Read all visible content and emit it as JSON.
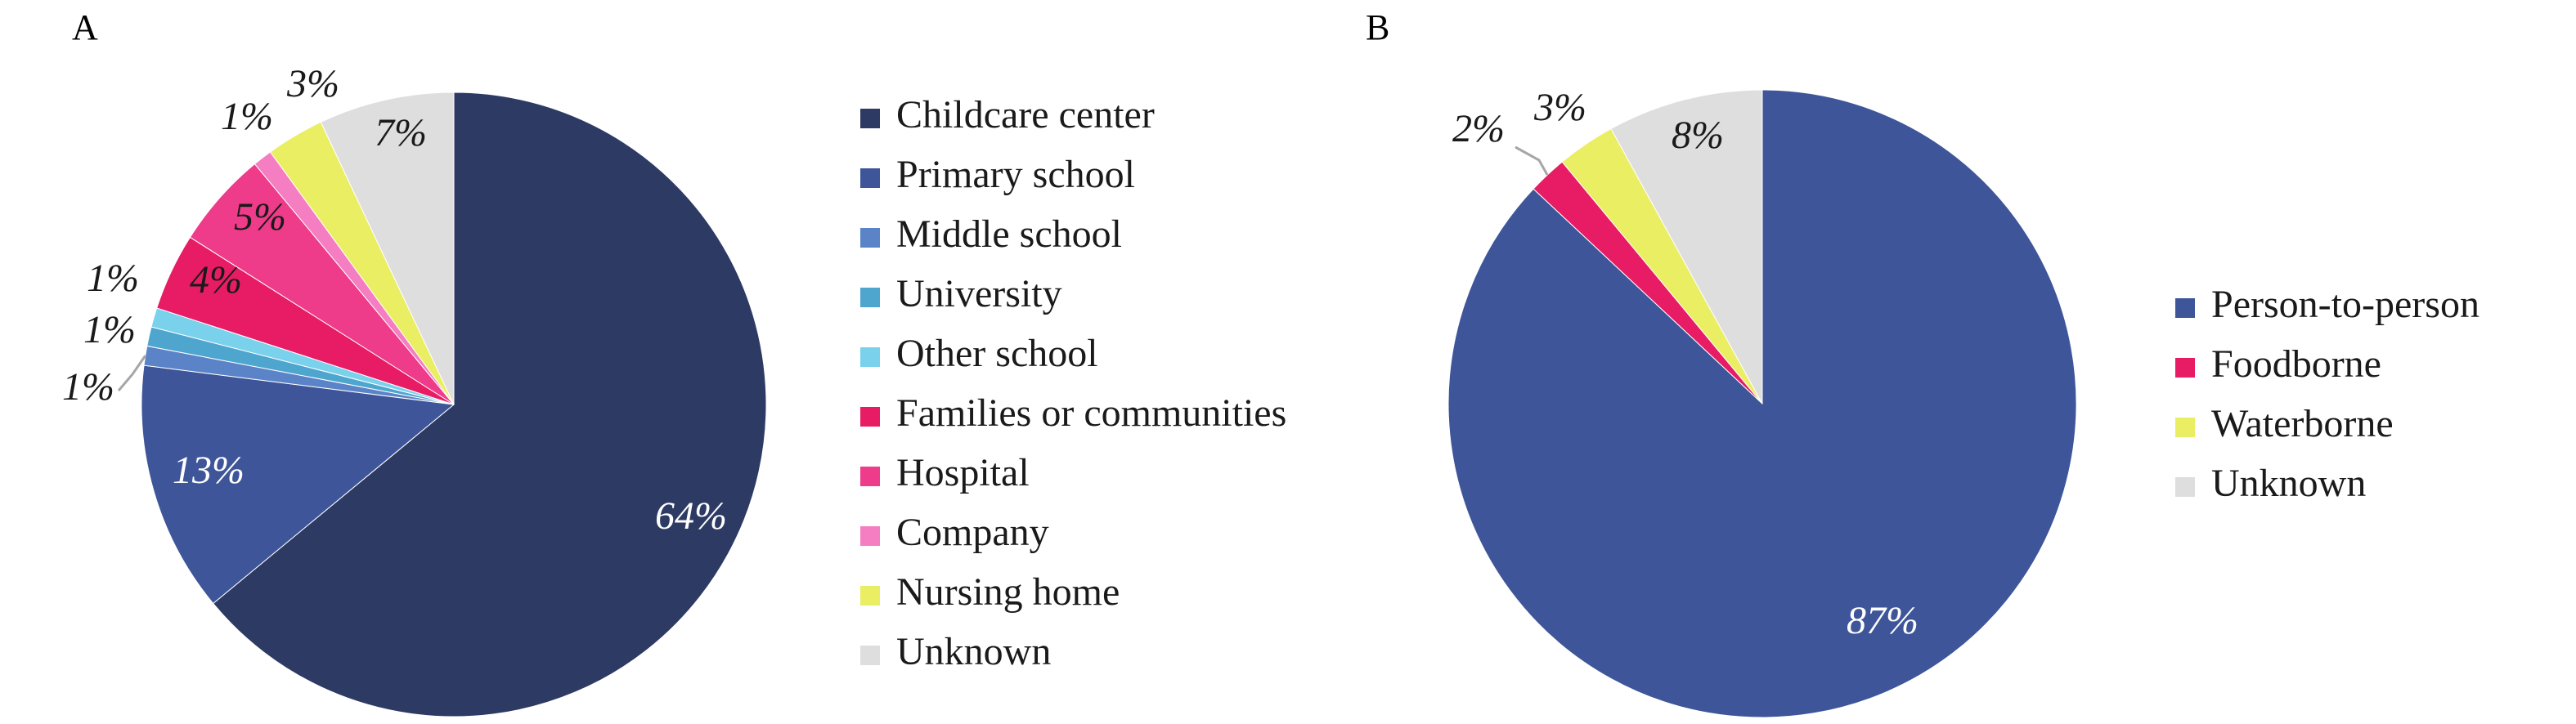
{
  "chart_data": [
    {
      "type": "pie",
      "panel_label": "A",
      "legend_position": "right",
      "slices": [
        {
          "label": "Childcare center",
          "value": 64,
          "display": "64%",
          "color": "#2d3a63"
        },
        {
          "label": "Primary school",
          "value": 13,
          "display": "13%",
          "color": "#3e5699"
        },
        {
          "label": "Middle school",
          "value": 1,
          "display": "1%",
          "color": "#5b84c8"
        },
        {
          "label": "University",
          "value": 1,
          "display": "1%",
          "color": "#4ea6cf"
        },
        {
          "label": "Other school",
          "value": 1,
          "display": "1%",
          "color": "#79d1ec"
        },
        {
          "label": "Families or communities",
          "value": 4,
          "display": "4%",
          "color": "#e71c64"
        },
        {
          "label": "Hospital",
          "value": 5,
          "display": "5%",
          "color": "#ee3b8a"
        },
        {
          "label": "Company",
          "value": 1,
          "display": "1%",
          "color": "#f47ec1"
        },
        {
          "label": "Nursing home",
          "value": 3,
          "display": "3%",
          "color": "#eaee63"
        },
        {
          "label": "Unknown",
          "value": 7,
          "display": "7%",
          "color": "#dedede"
        }
      ]
    },
    {
      "type": "pie",
      "panel_label": "B",
      "legend_position": "right",
      "slices": [
        {
          "label": "Person-to-person",
          "value": 87,
          "display": "87%",
          "color": "#3e5699"
        },
        {
          "label": "Foodborne",
          "value": 2,
          "display": "2%",
          "color": "#e71c64"
        },
        {
          "label": "Waterborne",
          "value": 3,
          "display": "3%",
          "color": "#eaee63"
        },
        {
          "label": "Unknown",
          "value": 8,
          "display": "8%",
          "color": "#dedede"
        }
      ]
    }
  ]
}
